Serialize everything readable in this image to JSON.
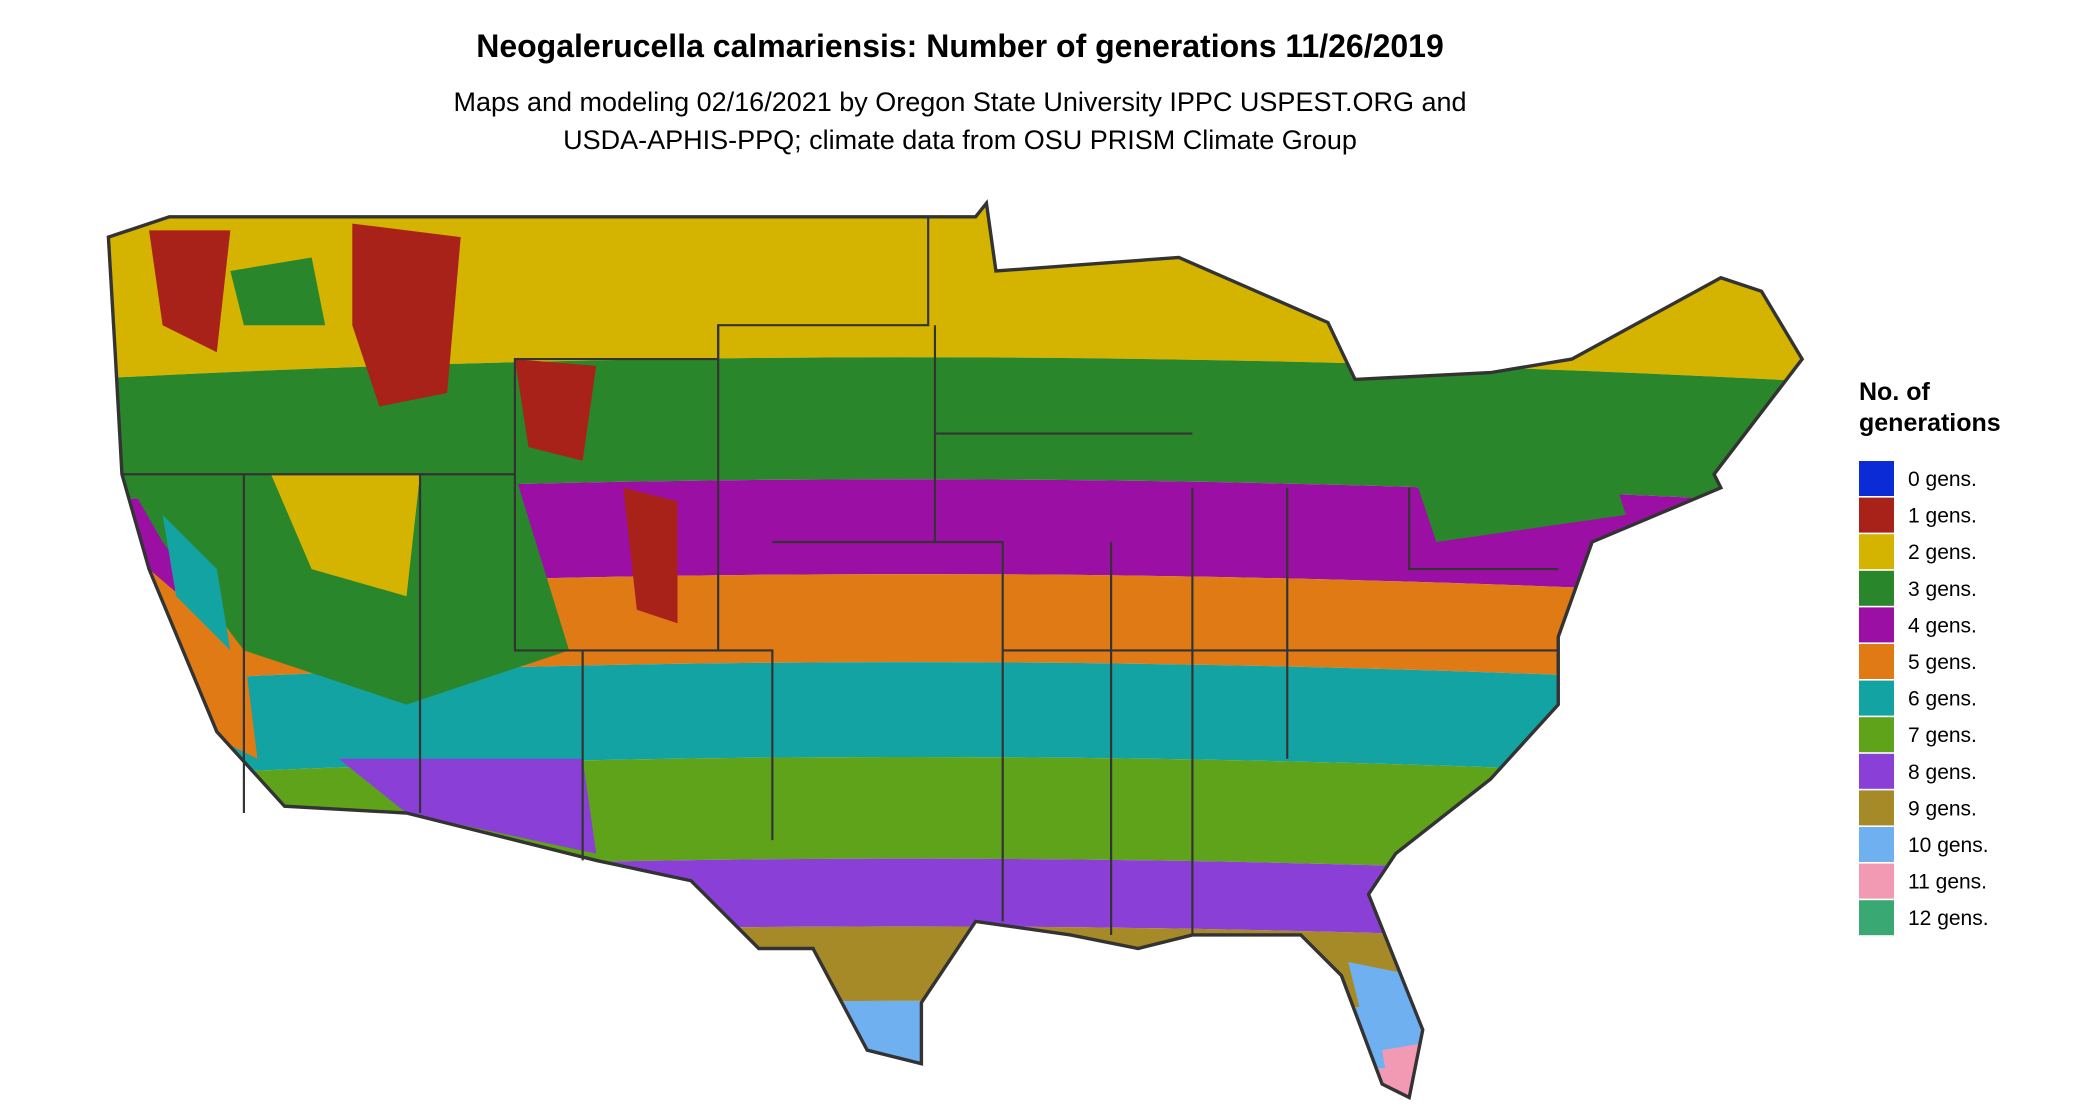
{
  "header": {
    "title": "Neogalerucella calmariensis: Number of generations 11/26/2019",
    "subtitle": [
      "Maps and modeling 02/16/2021 by Oregon State University IPPC USPEST.ORG and",
      "USDA-APHIS-PPQ; climate data from OSU PRISM Climate Group"
    ]
  },
  "legend": {
    "title": [
      "No. of",
      "generations"
    ],
    "items": [
      {
        "label": "0 gens.",
        "color": "#0a2bd6"
      },
      {
        "label": "1 gens.",
        "color": "#a8221a"
      },
      {
        "label": "2 gens.",
        "color": "#d4b400"
      },
      {
        "label": "3 gens.",
        "color": "#2a862a"
      },
      {
        "label": "4 gens.",
        "color": "#9b0fa5"
      },
      {
        "label": "5 gens.",
        "color": "#e07a14"
      },
      {
        "label": "6 gens.",
        "color": "#14a3a3"
      },
      {
        "label": "7 gens.",
        "color": "#5ea31a"
      },
      {
        "label": "8 gens.",
        "color": "#8a3fd6"
      },
      {
        "label": "9 gens.",
        "color": "#a68a28"
      },
      {
        "label": "10 gens.",
        "color": "#6fb0f0"
      },
      {
        "label": "11 gens.",
        "color": "#f29ab4"
      },
      {
        "label": "12 gens.",
        "color": "#3aa872"
      }
    ]
  }
}
